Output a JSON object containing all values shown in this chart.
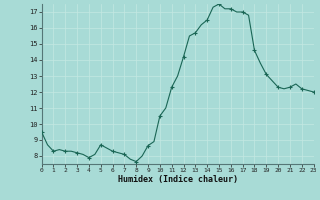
{
  "title": "",
  "xlabel": "Humidex (Indice chaleur)",
  "bg_color": "#a8dbd6",
  "grid_color_minor": "#b8e8e4",
  "grid_color_major": "#b0deda",
  "line_color": "#1a6655",
  "marker_color": "#1a6655",
  "x_values": [
    0,
    0.5,
    1,
    1.5,
    2,
    2.5,
    3,
    3.5,
    4,
    4.5,
    5,
    5.5,
    6,
    6.5,
    7,
    7.5,
    8,
    8.5,
    9,
    9.5,
    10,
    10.5,
    11,
    11.5,
    12,
    12.5,
    13,
    13.5,
    14,
    14.5,
    15,
    15.5,
    16,
    16.5,
    17,
    17.5,
    18,
    18.5,
    19,
    19.5,
    20,
    20.5,
    21,
    21.5,
    22,
    22.5,
    23
  ],
  "y_values": [
    9.5,
    8.7,
    8.3,
    8.4,
    8.3,
    8.3,
    8.2,
    8.1,
    7.9,
    8.1,
    8.7,
    8.5,
    8.3,
    8.2,
    8.1,
    7.8,
    7.65,
    8.0,
    8.65,
    8.9,
    10.5,
    11.0,
    12.3,
    13.0,
    14.2,
    15.5,
    15.7,
    16.2,
    16.5,
    17.3,
    17.5,
    17.2,
    17.2,
    17.0,
    17.0,
    16.8,
    14.6,
    13.8,
    13.1,
    12.7,
    12.3,
    12.2,
    12.3,
    12.5,
    12.2,
    12.1,
    12.0
  ],
  "xlim": [
    0,
    23
  ],
  "ylim": [
    7.5,
    17.5
  ],
  "yticks": [
    8,
    9,
    10,
    11,
    12,
    13,
    14,
    15,
    16,
    17
  ],
  "xticks": [
    0,
    1,
    2,
    3,
    4,
    5,
    6,
    7,
    8,
    9,
    10,
    11,
    12,
    13,
    14,
    15,
    16,
    17,
    18,
    19,
    20,
    21,
    22,
    23
  ],
  "marker_x": [
    0,
    1,
    2,
    3,
    4,
    5,
    6,
    7,
    8,
    9,
    10,
    11,
    12,
    13,
    14,
    15,
    16,
    17,
    18,
    19,
    20,
    21,
    22,
    23
  ]
}
